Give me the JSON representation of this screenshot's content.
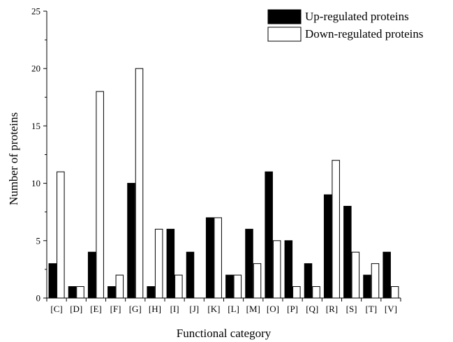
{
  "chart_data": {
    "type": "bar",
    "categories": [
      "[C]",
      "[D]",
      "[E]",
      "[F]",
      "[G]",
      "[H]",
      "[I]",
      "[J]",
      "[K]",
      "[L]",
      "[M]",
      "[O]",
      "[P]",
      "[Q]",
      "[R]",
      "[S]",
      "[T]",
      "[V]"
    ],
    "series": [
      {
        "name": "Up-regulated proteins",
        "values": [
          3,
          1,
          4,
          1,
          10,
          1,
          6,
          4,
          7,
          2,
          6,
          11,
          5,
          3,
          9,
          8,
          2,
          4
        ],
        "color": "#000000"
      },
      {
        "name": "Down-regulated proteins",
        "values": [
          11,
          1,
          18,
          2,
          20,
          6,
          2,
          0,
          7,
          2,
          3,
          5,
          1,
          1,
          12,
          4,
          3,
          1
        ],
        "color": "#ffffff"
      }
    ],
    "title": "",
    "xlabel": "Functional category",
    "ylabel": "Number of proteins",
    "ylim": [
      0,
      25
    ],
    "yticks": [
      "0",
      "5",
      "10",
      "15",
      "20",
      "25"
    ],
    "grid": false,
    "legend_position": "top-right"
  }
}
